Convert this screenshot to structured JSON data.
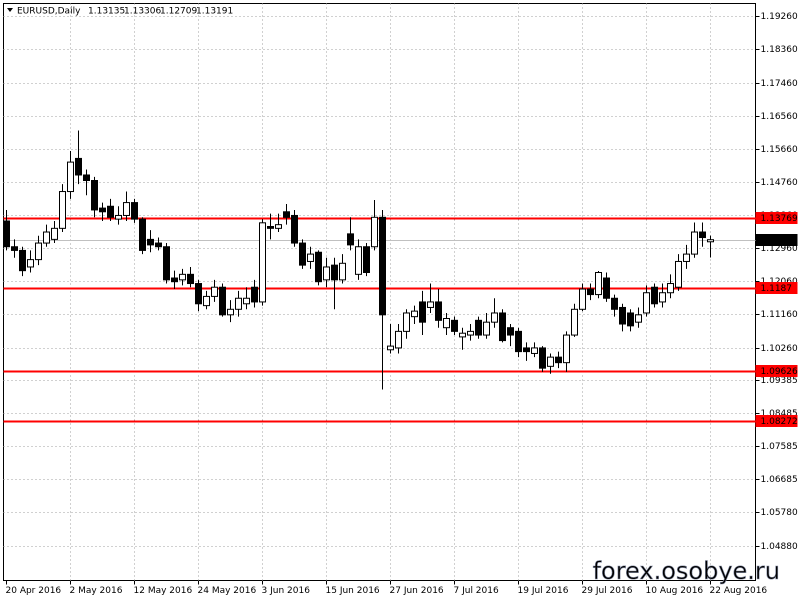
{
  "chart_data": {
    "type": "candlestick",
    "title": "EURUSD,Daily",
    "categories": [
      "20 Apr 2016",
      null,
      null,
      null,
      null,
      null,
      null,
      null,
      "2 May 2016",
      null,
      null,
      null,
      null,
      null,
      null,
      null,
      "12 May 2016",
      null,
      null,
      null,
      null,
      null,
      null,
      null,
      "24 May 2016",
      null,
      null,
      null,
      null,
      null,
      null,
      null,
      "3 Jun 2016",
      null,
      null,
      null,
      null,
      null,
      null,
      null,
      "15 Jun 2016",
      null,
      null,
      null,
      null,
      null,
      null,
      null,
      "27 Jun 2016",
      null,
      null,
      null,
      null,
      null,
      null,
      null,
      "7 Jul 2016",
      null,
      null,
      null,
      null,
      null,
      null,
      null,
      "19 Jul 2016",
      null,
      null,
      null,
      null,
      null,
      null,
      null,
      "29 Jul 2016",
      null,
      null,
      null,
      null,
      null,
      null,
      null,
      "10 Aug 2016",
      null,
      null,
      null,
      null,
      null,
      null,
      null,
      "22 Aug 2016"
    ],
    "open": [
      1.137,
      1.13,
      1.129,
      1.1245,
      1.1265,
      1.131,
      1.132,
      1.135,
      1.145,
      1.154,
      1.1495,
      1.148,
      1.1405,
      1.141,
      1.1375,
      1.1385,
      1.142,
      1.1375,
      1.132,
      1.131,
      1.13,
      1.1215,
      1.121,
      1.1225,
      1.12,
      1.114,
      1.1165,
      1.119,
      1.1115,
      1.113,
      1.1145,
      1.119,
      1.115,
      1.1355,
      1.135,
      1.1395,
      1.1385,
      1.131,
      1.126,
      1.1285,
      1.121,
      1.125,
      1.121,
      1.1335,
      1.1225,
      1.13,
      1.13,
      1.138,
      1.102,
      1.1025,
      1.107,
      1.111,
      1.115,
      1.1135,
      1.115,
      1.108,
      1.11,
      1.1055,
      1.106,
      1.11,
      1.106,
      1.1095,
      1.112,
      1.108,
      1.107,
      1.1025,
      1.101,
      1.1025,
      1.0975,
      1.1,
      1.0985,
      1.106,
      1.113,
      1.1185,
      1.117,
      1.1215,
      1.116,
      1.1135,
      1.112,
      1.1095,
      1.112,
      1.119,
      1.115,
      1.1175,
      1.119,
      1.126,
      1.128,
      1.134,
      1.13135
    ],
    "high": [
      1.14,
      1.132,
      1.13,
      1.129,
      1.133,
      1.136,
      1.137,
      1.147,
      1.156,
      1.1616,
      1.151,
      1.149,
      1.142,
      1.143,
      1.141,
      1.145,
      1.143,
      1.138,
      1.1345,
      1.1325,
      1.131,
      1.1235,
      1.124,
      1.1245,
      1.121,
      1.118,
      1.121,
      1.12,
      1.1155,
      1.118,
      1.119,
      1.121,
      1.1375,
      1.139,
      1.139,
      1.1416,
      1.14,
      1.132,
      1.13,
      1.129,
      1.127,
      1.127,
      1.128,
      1.138,
      1.132,
      1.131,
      1.1427,
      1.14,
      1.109,
      1.109,
      1.113,
      1.114,
      1.118,
      1.12,
      1.1185,
      1.112,
      1.111,
      1.108,
      1.109,
      1.111,
      1.112,
      1.116,
      1.113,
      1.109,
      1.108,
      1.104,
      1.104,
      1.103,
      1.101,
      1.1015,
      1.107,
      1.1145,
      1.12,
      1.12,
      1.1234,
      1.123,
      1.117,
      1.1145,
      1.113,
      1.1135,
      1.1195,
      1.12,
      1.12,
      1.1225,
      1.128,
      1.1305,
      1.1366,
      1.1366,
      1.13306
    ],
    "low": [
      1.129,
      1.127,
      1.122,
      1.123,
      1.125,
      1.13,
      1.131,
      1.134,
      1.143,
      1.147,
      1.144,
      1.138,
      1.137,
      1.137,
      1.136,
      1.137,
      1.1365,
      1.128,
      1.1285,
      1.129,
      1.12,
      1.1185,
      1.1195,
      1.119,
      1.1125,
      1.113,
      1.115,
      1.111,
      1.1095,
      1.111,
      1.113,
      1.1135,
      1.114,
      1.132,
      1.134,
      1.136,
      1.13,
      1.124,
      1.124,
      1.1195,
      1.119,
      1.113,
      1.12,
      1.129,
      1.121,
      1.122,
      1.129,
      1.0912,
      1.101,
      1.101,
      1.105,
      1.109,
      1.106,
      1.112,
      1.108,
      1.106,
      1.106,
      1.102,
      1.1045,
      1.105,
      1.105,
      1.108,
      1.104,
      1.103,
      1.1,
      1.099,
      1.1,
      1.096,
      1.0955,
      1.097,
      1.096,
      1.1055,
      1.1125,
      1.1155,
      1.116,
      1.115,
      1.111,
      1.107,
      1.107,
      1.108,
      1.111,
      1.1135,
      1.1135,
      1.116,
      1.118,
      1.124,
      1.127,
      1.13,
      1.12709
    ],
    "close": [
      1.13,
      1.129,
      1.1235,
      1.1265,
      1.131,
      1.134,
      1.135,
      1.145,
      1.153,
      1.1495,
      1.148,
      1.14,
      1.1395,
      1.138,
      1.1385,
      1.142,
      1.1375,
      1.129,
      1.1305,
      1.13,
      1.121,
      1.1205,
      1.1225,
      1.12,
      1.1145,
      1.1165,
      1.119,
      1.1115,
      1.113,
      1.116,
      1.116,
      1.115,
      1.1365,
      1.135,
      1.136,
      1.138,
      1.131,
      1.125,
      1.128,
      1.1205,
      1.1245,
      1.121,
      1.1255,
      1.1305,
      1.13,
      1.123,
      1.138,
      1.1115,
      1.103,
      1.107,
      1.112,
      1.1125,
      1.1095,
      1.115,
      1.11,
      1.1105,
      1.107,
      1.1065,
      1.107,
      1.106,
      1.1095,
      1.112,
      1.1045,
      1.106,
      1.1015,
      1.1015,
      1.1025,
      1.097,
      1.1,
      1.0985,
      1.106,
      1.113,
      1.1185,
      1.117,
      1.123,
      1.116,
      1.113,
      1.109,
      1.1085,
      1.1115,
      1.1175,
      1.1145,
      1.1175,
      1.12,
      1.126,
      1.128,
      1.134,
      1.1325,
      1.13191
    ],
    "ylim": [
      1.0393,
      1.1961
    ],
    "yticks": [
      {
        "value": 1.1926,
        "label": "1.19260"
      },
      {
        "value": 1.1836,
        "label": "1.18360"
      },
      {
        "value": 1.1746,
        "label": "1.17460"
      },
      {
        "value": 1.1656,
        "label": "1.16560"
      },
      {
        "value": 1.1566,
        "label": "1.15660"
      },
      {
        "value": 1.1476,
        "label": "1.14760"
      },
      {
        "value": 1.1386,
        "label": "1.13860"
      },
      {
        "value": 1.1296,
        "label": "1.12960"
      },
      {
        "value": 1.1206,
        "label": "1.12060"
      },
      {
        "value": 1.1116,
        "label": "1.11160"
      },
      {
        "value": 1.1026,
        "label": "1.10260"
      },
      1.09385,
      1.08485,
      1.07585,
      1.06685,
      {
        "value": 1.0578,
        "label": "1.05780"
      },
      {
        "value": 1.0488,
        "label": "1.04880"
      }
    ],
    "levels": [
      1.13769,
      1.1187,
      1.09626,
      1.08272
    ],
    "level_color": "#ff0000",
    "up_color": "#ffffff",
    "down_color": "#000000",
    "grid": true,
    "watermark": "forex.osobye.ru"
  }
}
